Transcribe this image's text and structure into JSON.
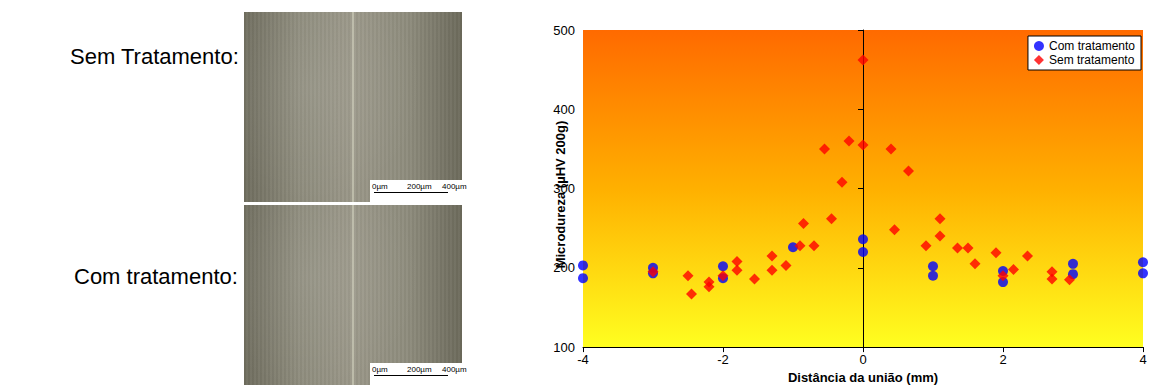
{
  "micrographs": [
    {
      "label": "Sem Tratamento:",
      "scale_labels": [
        "0µm",
        "200µm",
        "400µm"
      ]
    },
    {
      "label": "Com tratamento:",
      "scale_labels": [
        "0µm",
        "200µm",
        "400µm"
      ]
    }
  ],
  "chart_data": {
    "type": "scatter",
    "xlabel": "Distância da união (mm)",
    "ylabel": "Microdureza (µHV 200g)",
    "xlim": [
      -4,
      4
    ],
    "xticks": [
      -4,
      -2,
      0,
      2,
      4
    ],
    "ylim": [
      100,
      500
    ],
    "yticks": [
      100,
      200,
      300,
      400,
      500
    ],
    "grid": false,
    "legend": "upper right",
    "series": [
      {
        "name": "Com tratamento",
        "color": "#0000ff",
        "marker": "circle",
        "x": [
          -4,
          -4,
          -3,
          -3,
          -2,
          -2,
          -1,
          0,
          0,
          1,
          1,
          2,
          2,
          3,
          3,
          4,
          4
        ],
        "values": [
          203,
          187,
          200,
          193,
          202,
          187,
          226,
          236,
          220,
          202,
          190,
          196,
          182,
          205,
          192,
          207,
          193
        ]
      },
      {
        "name": "Sem tratamento",
        "color": "#ff0000",
        "marker": "diamond",
        "x": [
          -3,
          -2.5,
          -2.45,
          -2.2,
          -2.2,
          -2.0,
          -1.8,
          -1.8,
          -1.55,
          -1.3,
          -1.3,
          -1.1,
          -0.9,
          -0.85,
          -0.7,
          -0.55,
          -0.45,
          -0.3,
          -0.2,
          0,
          0,
          0.4,
          0.45,
          0.65,
          0.9,
          1.1,
          1.1,
          1.35,
          1.5,
          1.6,
          1.9,
          2.0,
          2.15,
          2.35,
          2.7,
          2.7,
          2.95
        ],
        "values": [
          195,
          190,
          167,
          182,
          176,
          190,
          208,
          197,
          186,
          215,
          197,
          203,
          228,
          256,
          228,
          350,
          262,
          308,
          360,
          462,
          355,
          350,
          248,
          322,
          228,
          262,
          240,
          225,
          225,
          205,
          219,
          190,
          198,
          215,
          195,
          186,
          185
        ]
      }
    ]
  }
}
